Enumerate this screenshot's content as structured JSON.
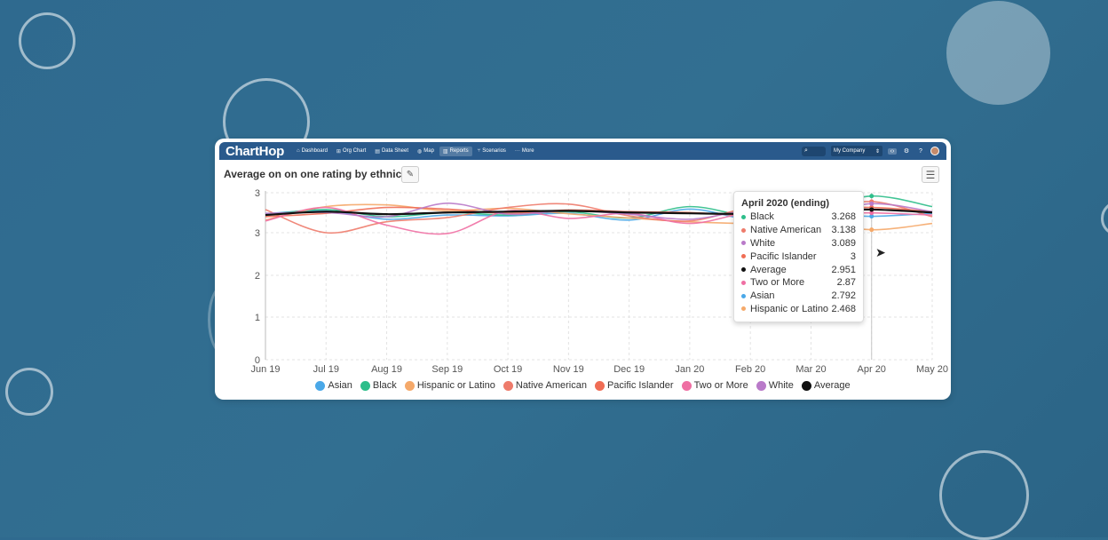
{
  "app": {
    "logo": "ChartHop",
    "nav": [
      {
        "label": "Dashboard",
        "icon": "home-icon",
        "glyph": "⌂"
      },
      {
        "label": "Org Chart",
        "icon": "org-chart-icon",
        "glyph": "⊞"
      },
      {
        "label": "Data Sheet",
        "icon": "table-icon",
        "glyph": "▤"
      },
      {
        "label": "Map",
        "icon": "globe-icon",
        "glyph": "◍"
      },
      {
        "label": "Reports",
        "icon": "bar-chart-icon",
        "glyph": "▥",
        "active": true
      },
      {
        "label": "Scenarios",
        "icon": "branch-icon",
        "glyph": "⑂"
      },
      {
        "label": "More",
        "icon": "ellipsis-icon",
        "glyph": "···"
      }
    ],
    "company_selector": "My Company"
  },
  "chart_data": {
    "type": "line",
    "title": "Average on on one rating by ethnicity",
    "categories": [
      "Jun 19",
      "Jul 19",
      "Aug 19",
      "Sep 19",
      "Oct 19",
      "Nov 19",
      "Dec 19",
      "Jan 20",
      "Feb 20",
      "Mar 20",
      "Apr 20",
      "May 20"
    ],
    "ylim": [
      0,
      3.0
    ],
    "yticks": [
      "0",
      "1",
      "2",
      "3",
      "3"
    ],
    "grid": true,
    "legend_position": "bottom",
    "series": [
      {
        "name": "Asian",
        "color": "#4aa8e8",
        "values": [
          2.85,
          2.92,
          2.72,
          2.82,
          2.8,
          2.86,
          2.7,
          2.96,
          2.72,
          2.84,
          2.79,
          2.86
        ]
      },
      {
        "name": "Black",
        "color": "#2dbe8a",
        "values": [
          2.82,
          2.95,
          2.78,
          2.88,
          2.82,
          2.9,
          2.75,
          3.02,
          2.8,
          2.92,
          3.27,
          3.02
        ]
      },
      {
        "name": "Hispanic or Latino",
        "color": "#f5a96a",
        "values": [
          2.7,
          3.02,
          3.06,
          2.92,
          2.98,
          2.85,
          2.75,
          2.66,
          2.62,
          2.68,
          2.47,
          2.62
        ]
      },
      {
        "name": "Native American",
        "color": "#ee7b6b",
        "values": [
          2.95,
          2.4,
          2.66,
          2.76,
          3.0,
          3.08,
          2.8,
          2.68,
          2.98,
          2.9,
          3.14,
          2.78
        ]
      },
      {
        "name": "Pacific Islander",
        "color": "#f06d55",
        "values": [
          2.78,
          2.86,
          3.0,
          2.96,
          2.86,
          2.94,
          2.9,
          2.88,
          2.82,
          2.96,
          3.0,
          2.9
        ]
      },
      {
        "name": "Two or More",
        "color": "#ef6fa3",
        "values": [
          2.68,
          3.0,
          2.58,
          2.38,
          2.92,
          2.74,
          2.86,
          2.62,
          2.88,
          2.86,
          2.87,
          2.82
        ]
      },
      {
        "name": "White",
        "color": "#b97ac9",
        "values": [
          2.86,
          2.88,
          2.78,
          3.1,
          2.84,
          2.92,
          2.84,
          2.72,
          2.92,
          2.8,
          3.09,
          2.9
        ]
      },
      {
        "name": "Average",
        "color": "#111111",
        "values": [
          2.82,
          2.9,
          2.84,
          2.88,
          2.9,
          2.92,
          2.88,
          2.86,
          2.85,
          2.92,
          2.95,
          2.88
        ]
      }
    ]
  },
  "tooltip": {
    "title": "April 2020 (ending)",
    "rows": [
      {
        "name": "Black",
        "value": "3.268",
        "color": "#2dbe8a"
      },
      {
        "name": "Native American",
        "value": "3.138",
        "color": "#ee7b6b"
      },
      {
        "name": "White",
        "value": "3.089",
        "color": "#b97ac9"
      },
      {
        "name": "Pacific Islander",
        "value": "3",
        "color": "#f06d55"
      },
      {
        "name": "Average",
        "value": "2.951",
        "color": "#111111"
      },
      {
        "name": "Two or More",
        "value": "2.87",
        "color": "#ef6fa3"
      },
      {
        "name": "Asian",
        "value": "2.792",
        "color": "#4aa8e8"
      },
      {
        "name": "Hispanic or Latino",
        "value": "2.468",
        "color": "#f5a96a"
      }
    ]
  }
}
